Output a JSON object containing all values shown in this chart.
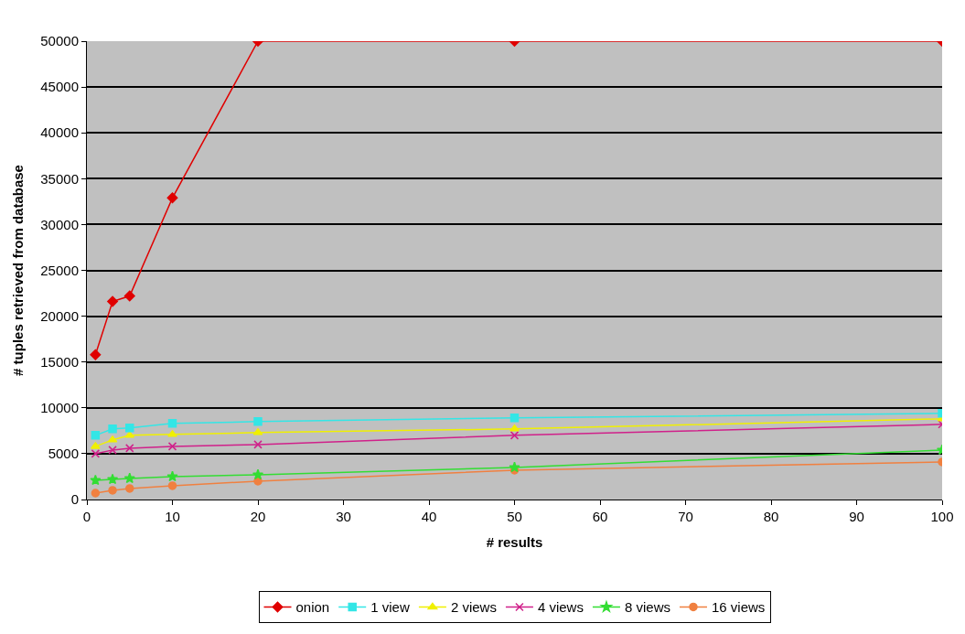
{
  "chart_data": {
    "type": "line",
    "xlabel": "# results",
    "ylabel": "# tuples retrieved from database",
    "x": [
      1,
      3,
      5,
      10,
      20,
      50,
      100
    ],
    "series": [
      {
        "name": "onion",
        "color": "#e00000",
        "marker": "diamond",
        "values": [
          15800,
          21600,
          22200,
          32900,
          50000,
          50000,
          50000
        ]
      },
      {
        "name": "1 view",
        "color": "#33e6e6",
        "marker": "square",
        "values": [
          7000,
          7700,
          7800,
          8300,
          8500,
          8900,
          9400
        ]
      },
      {
        "name": "2 views",
        "color": "#f0f000",
        "marker": "triangle",
        "values": [
          5800,
          6500,
          7000,
          7100,
          7300,
          7700,
          8800
        ]
      },
      {
        "name": "4 views",
        "color": "#d0208a",
        "marker": "cross",
        "values": [
          5000,
          5400,
          5600,
          5800,
          6000,
          7000,
          8200
        ]
      },
      {
        "name": "8 views",
        "color": "#33dd33",
        "marker": "star",
        "values": [
          2100,
          2200,
          2300,
          2500,
          2700,
          3500,
          5400
        ]
      },
      {
        "name": "16 views",
        "color": "#f08040",
        "marker": "circle",
        "values": [
          700,
          1000,
          1200,
          1500,
          2000,
          3200,
          4100
        ]
      }
    ],
    "xlim": [
      0,
      100
    ],
    "xticks": [
      0,
      10,
      20,
      30,
      40,
      50,
      60,
      70,
      80,
      90,
      100
    ],
    "ylim": [
      0,
      50000
    ],
    "yticks": [
      0,
      5000,
      10000,
      15000,
      20000,
      25000,
      30000,
      35000,
      40000,
      45000,
      50000
    ],
    "grid": "y",
    "legend": "bottom",
    "line_style": "solid"
  }
}
